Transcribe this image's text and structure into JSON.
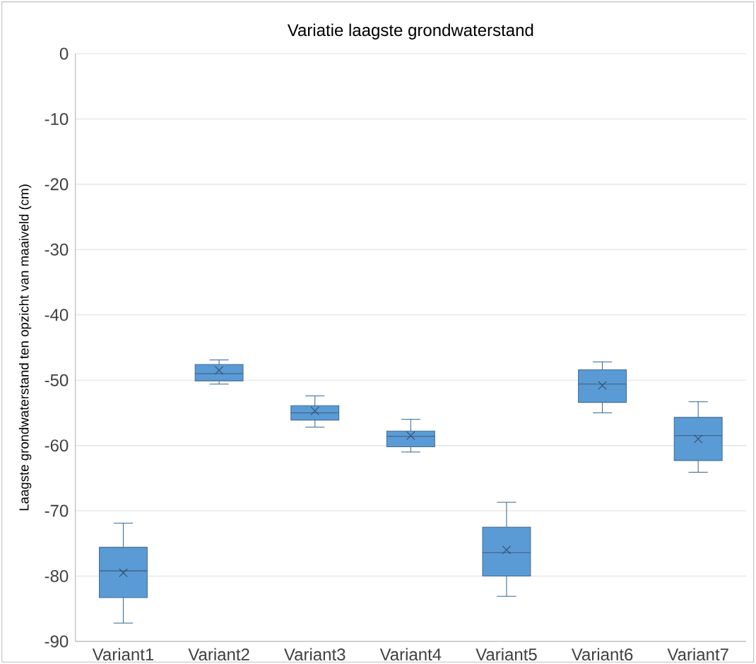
{
  "chart_data": {
    "type": "box",
    "title": "Variatie laagste grondwaterstand",
    "ylabel": "Laagste grondwaterstand ten opzicht van maaiveld (cm)",
    "categories": [
      "Variant1",
      "Variant2",
      "Variant3",
      "Variant4",
      "Variant5",
      "Variant6",
      "Variant7"
    ],
    "boxes": [
      {
        "low": -87.2,
        "q1": -83.3,
        "median": -79.2,
        "q3": -75.6,
        "high": -71.9,
        "mean": -79.5
      },
      {
        "low": -50.6,
        "q1": -50.1,
        "median": -49.0,
        "q3": -47.6,
        "high": -46.9,
        "mean": -48.5
      },
      {
        "low": -57.2,
        "q1": -56.1,
        "median": -55.0,
        "q3": -53.9,
        "high": -52.4,
        "mean": -54.7
      },
      {
        "low": -61.0,
        "q1": -60.2,
        "median": -58.6,
        "q3": -57.8,
        "high": -56.0,
        "mean": -58.5
      },
      {
        "low": -83.1,
        "q1": -80.0,
        "median": -76.4,
        "q3": -72.5,
        "high": -68.7,
        "mean": -76.0
      },
      {
        "low": -55.0,
        "q1": -53.4,
        "median": -50.6,
        "q3": -48.4,
        "high": -47.2,
        "mean": -50.8
      },
      {
        "low": -64.1,
        "q1": -62.3,
        "median": -58.5,
        "q3": -55.7,
        "high": -53.3,
        "mean": -59.0
      }
    ],
    "color": "#5b9bd5",
    "ylim": [
      -90,
      0
    ],
    "yticks": [
      0,
      -10,
      -20,
      -30,
      -40,
      -50,
      -60,
      -70,
      -80,
      -90
    ],
    "grid": "y"
  }
}
